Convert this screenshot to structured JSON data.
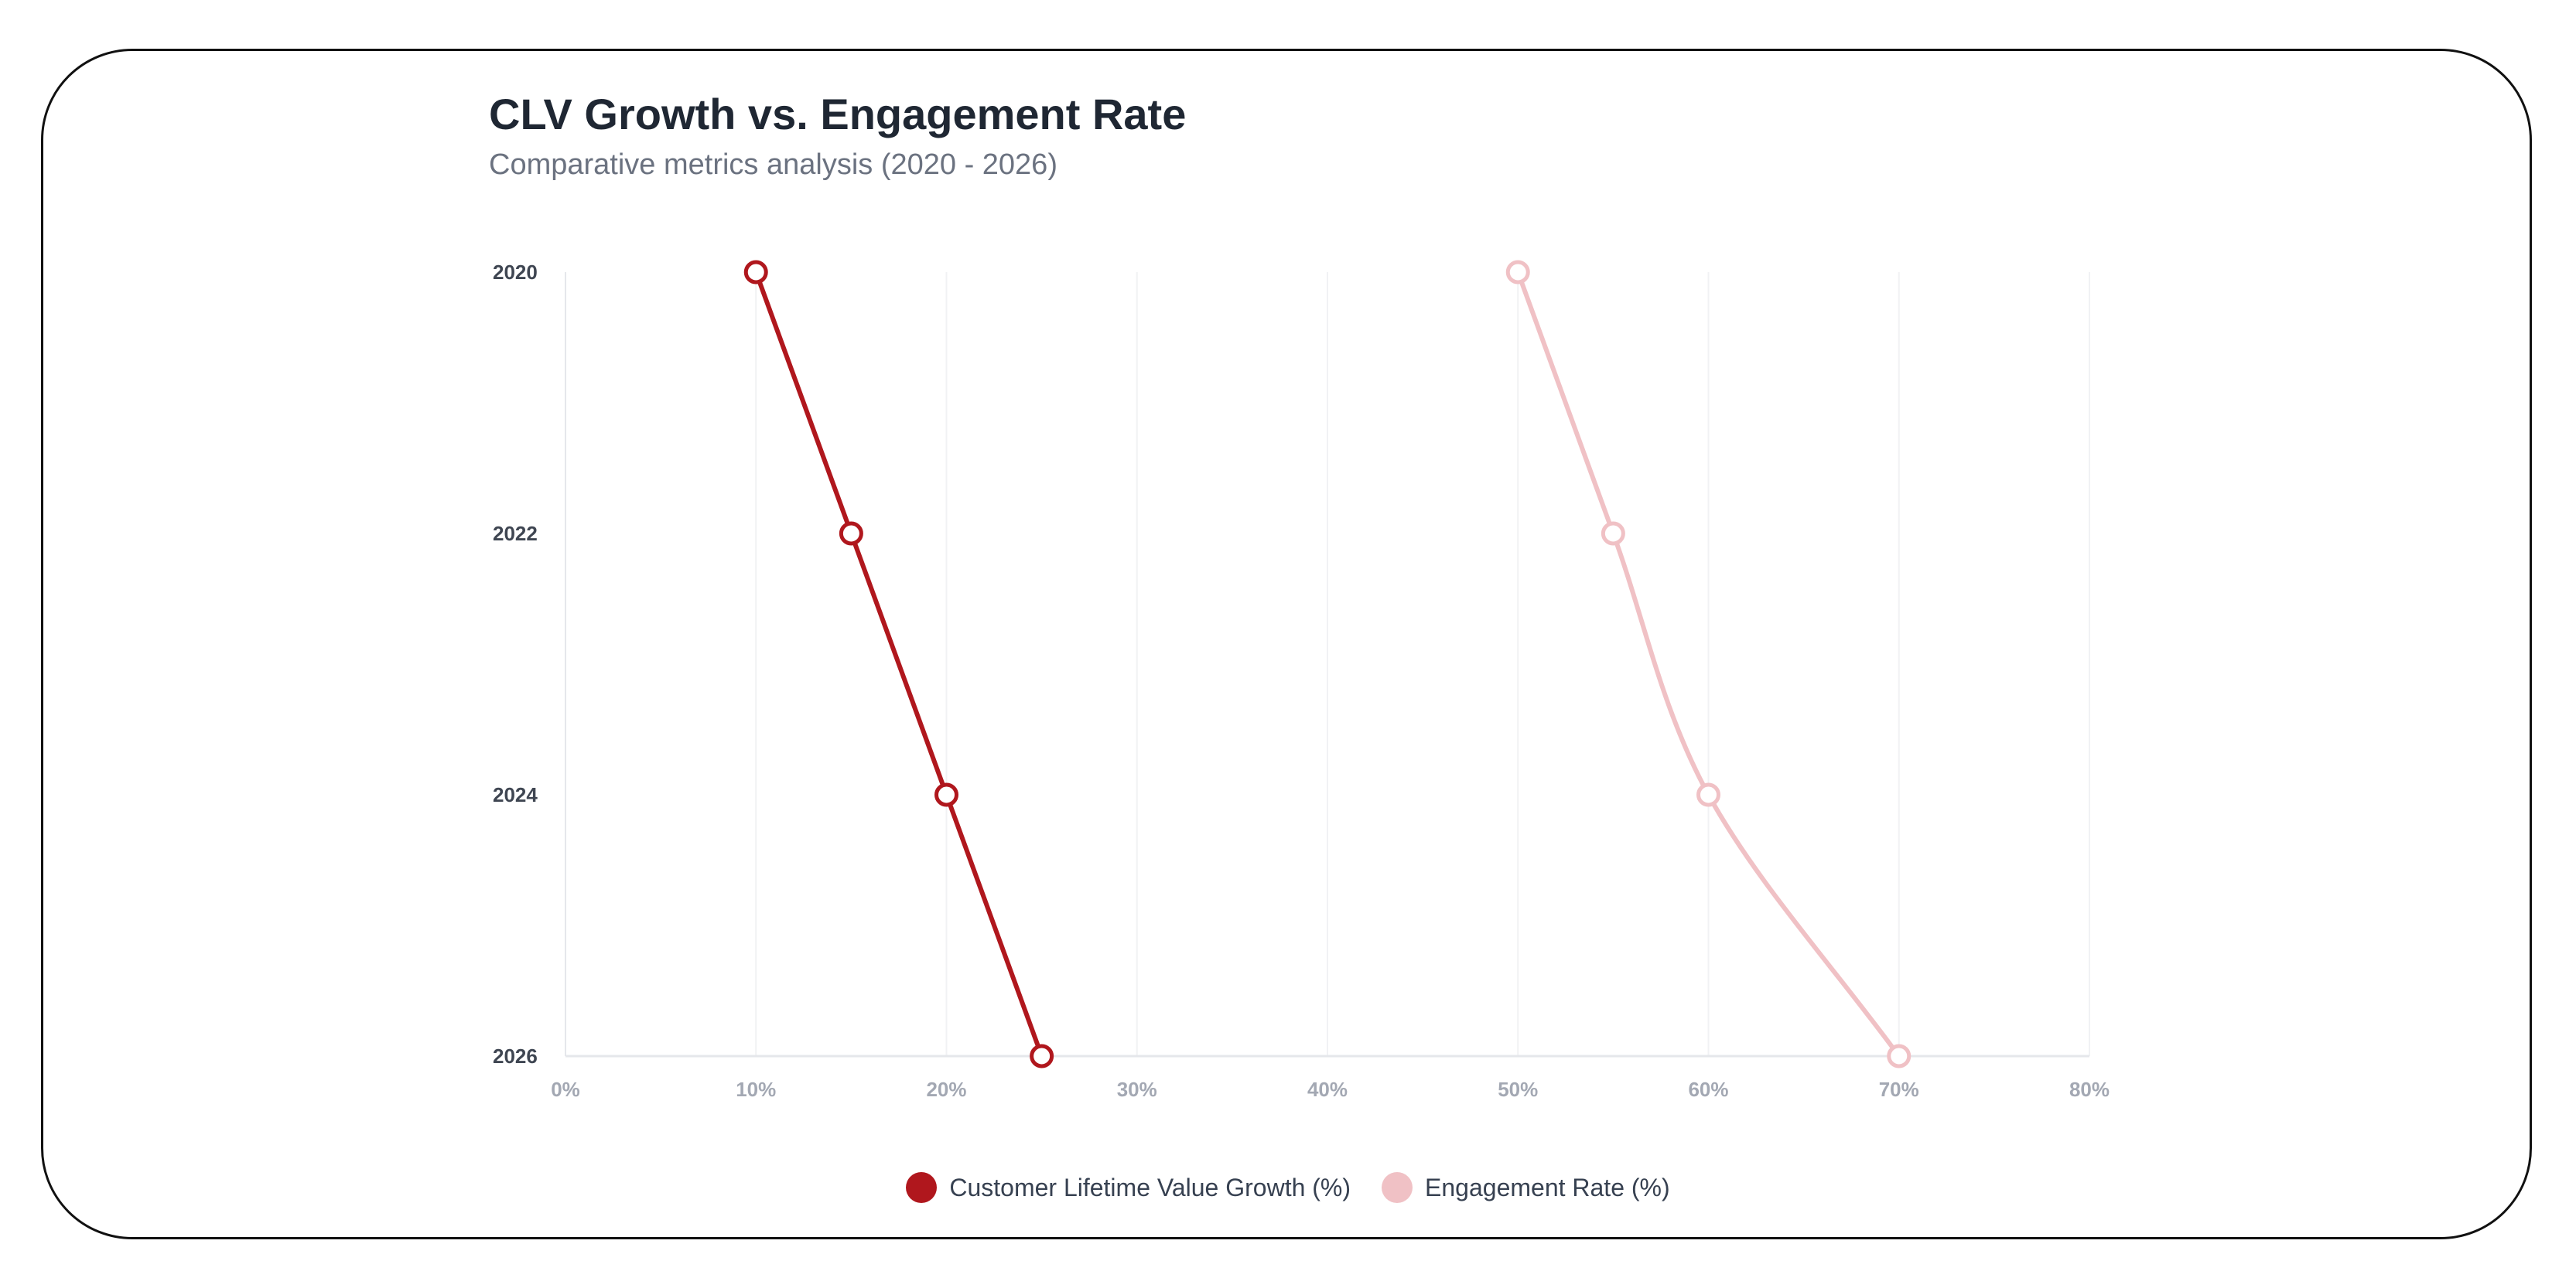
{
  "header": {
    "title": "CLV Growth vs. Engagement Rate",
    "subtitle": "Comparative metrics analysis (2020 - 2026)"
  },
  "chart_data": {
    "type": "line",
    "orientation": "horizontal-values",
    "title": "CLV Growth vs. Engagement Rate",
    "subtitle": "Comparative metrics analysis (2020 - 2026)",
    "categories": [
      "2020",
      "2022",
      "2024",
      "2026"
    ],
    "xlim": [
      0,
      80
    ],
    "x_ticks": [
      "0%",
      "10%",
      "20%",
      "30%",
      "40%",
      "50%",
      "60%",
      "70%",
      "80%"
    ],
    "grid": true,
    "legend_position": "bottom",
    "series": [
      {
        "name": "Customer Lifetime Value Growth (%)",
        "values": [
          10,
          15,
          20,
          25
        ],
        "color": "#b0171d"
      },
      {
        "name": "Engagement Rate (%)",
        "values": [
          50,
          55,
          60,
          70
        ],
        "color": "#f0c1c5"
      }
    ]
  }
}
